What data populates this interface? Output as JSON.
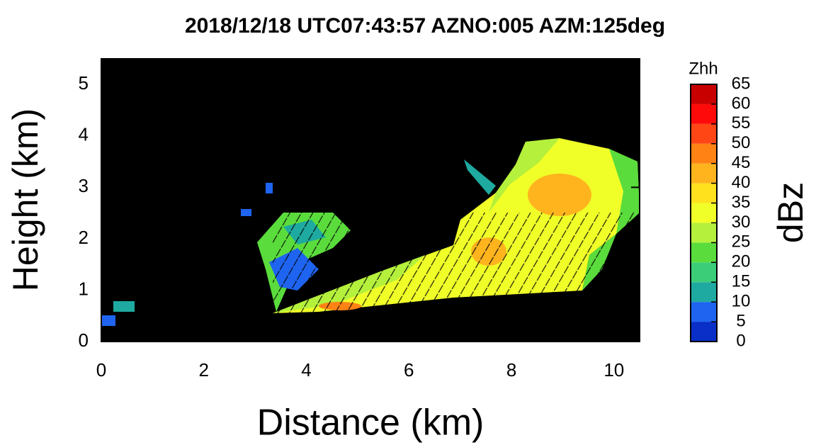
{
  "chart_data": {
    "type": "rhi",
    "title": "2018/12/18 UTC07:43:57 AZNO:005 AZM:125deg",
    "xlabel": "Distance (km)",
    "ylabel": "Height (km)",
    "xlim": [
      0,
      10.5
    ],
    "ylim": [
      0,
      5.5
    ],
    "xticks": [
      0,
      2,
      4,
      6,
      8,
      10
    ],
    "yticks": [
      0,
      1,
      2,
      3,
      4,
      5
    ],
    "background": "#000000",
    "colorbar": {
      "title": "Zhh",
      "unit": "dBz",
      "levels": [
        0,
        5,
        10,
        15,
        20,
        25,
        30,
        35,
        40,
        45,
        50,
        55,
        60,
        65
      ],
      "colors": [
        "#0a2fc8",
        "#1e64f0",
        "#1eaaa0",
        "#3ccd78",
        "#5adc3c",
        "#b4f03c",
        "#f0ff28",
        "#ffe11e",
        "#ffb41e",
        "#ff8214",
        "#ff4614",
        "#ff0a0a",
        "#c80000"
      ]
    }
  }
}
